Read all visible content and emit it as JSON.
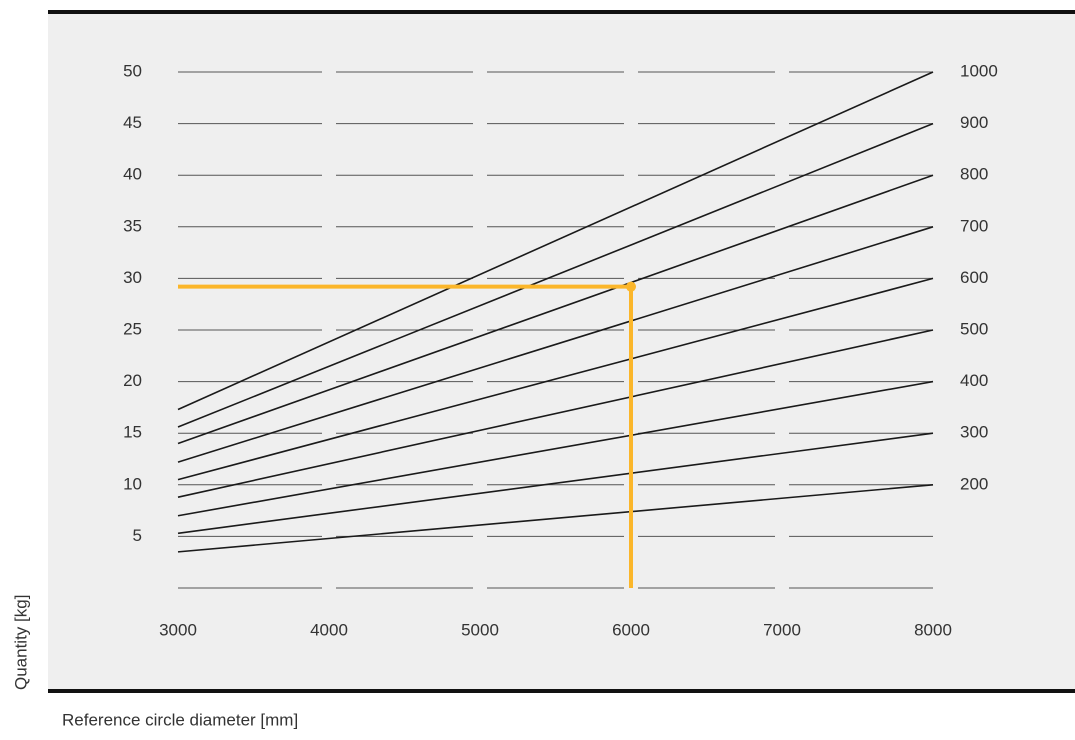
{
  "chart_data": {
    "type": "line",
    "x_label": "Reference circle diameter [mm]",
    "y_label": "Quantity [kg]",
    "xlim": [
      3000,
      8000
    ],
    "xticks": [
      3000,
      4000,
      5000,
      6000,
      7000,
      8000
    ],
    "ylim": [
      0,
      50
    ],
    "yticks": [
      5,
      10,
      15,
      20,
      25,
      30,
      35,
      40,
      45,
      50
    ],
    "y2lim": [
      0,
      1000
    ],
    "y2ticks": [
      200,
      300,
      400,
      500,
      600,
      700,
      800,
      900,
      1000
    ],
    "grid": true,
    "series": [
      {
        "color": "#1a1a1a",
        "x": [
          3000,
          8000
        ],
        "values": [
          3.5,
          10
        ]
      },
      {
        "color": "#1a1a1a",
        "x": [
          3000,
          8000
        ],
        "values": [
          5.3,
          15
        ]
      },
      {
        "color": "#1a1a1a",
        "x": [
          3000,
          8000
        ],
        "values": [
          7.0,
          20
        ]
      },
      {
        "color": "#1a1a1a",
        "x": [
          3000,
          8000
        ],
        "values": [
          8.8,
          25
        ]
      },
      {
        "color": "#1a1a1a",
        "x": [
          3000,
          8000
        ],
        "values": [
          10.5,
          30
        ]
      },
      {
        "color": "#1a1a1a",
        "x": [
          3000,
          8000
        ],
        "values": [
          12.2,
          35
        ]
      },
      {
        "color": "#1a1a1a",
        "x": [
          3000,
          8000
        ],
        "values": [
          14.0,
          40
        ]
      },
      {
        "color": "#1a1a1a",
        "x": [
          3000,
          8000
        ],
        "values": [
          15.6,
          45
        ]
      },
      {
        "color": "#1a1a1a",
        "x": [
          3000,
          8000
        ],
        "values": [
          17.3,
          50
        ]
      }
    ],
    "highlight": {
      "x": 6000,
      "y": 29.2,
      "color": "#fbb62a"
    }
  }
}
